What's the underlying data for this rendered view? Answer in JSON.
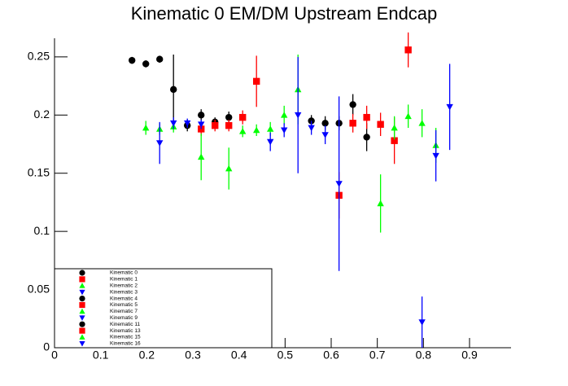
{
  "chart_data": {
    "type": "scatter",
    "title": "Kinematic 0 EM/DM Upstream Endcap",
    "xlim": [
      0,
      0.99
    ],
    "ylim": [
      0,
      0.266
    ],
    "xticks": [
      0,
      0.1,
      0.2,
      0.3,
      0.4,
      0.5,
      0.6,
      0.7,
      0.8,
      0.9
    ],
    "yticks": [
      0,
      0.05,
      0.1,
      0.15,
      0.2,
      0.25
    ],
    "series": [
      {
        "name": "Kinematic 0",
        "color": "#000000",
        "marker": "circle",
        "x": [
          0.168,
          0.198,
          0.228,
          0.258,
          0.288,
          0.318,
          0.348,
          0.378,
          0.557,
          0.587,
          0.617,
          0.647,
          0.677
        ],
        "values": [
          0.247,
          0.244,
          0.248,
          0.222,
          0.191,
          0.2,
          0.194,
          0.198,
          0.195,
          0.193,
          0.193,
          0.209,
          0.181
        ],
        "errors": [
          0.003,
          0.003,
          0.003,
          0.03,
          0.005,
          0.005,
          0.004,
          0.005,
          0.005,
          0.006,
          0.006,
          0.009,
          0.012
        ]
      },
      {
        "name": "Kinematic 1",
        "color": "#ff0000",
        "marker": "square",
        "x": [
          0.318,
          0.348,
          0.378,
          0.408,
          0.438,
          0.617,
          0.647,
          0.677,
          0.707,
          0.737,
          0.767
        ],
        "values": [
          0.188,
          0.191,
          0.191,
          0.198,
          0.229,
          0.131,
          0.193,
          0.198,
          0.192,
          0.178,
          0.256
        ],
        "errors": [
          0.006,
          0.005,
          0.005,
          0.006,
          0.022,
          0.02,
          0.008,
          0.01,
          0.01,
          0.02,
          0.015
        ]
      },
      {
        "name": "Kinematic 2",
        "color": "#00ff00",
        "marker": "triangle-up",
        "x": [
          0.198,
          0.228,
          0.258,
          0.318,
          0.378,
          0.408,
          0.438,
          0.468,
          0.498,
          0.528,
          0.707,
          0.737,
          0.767,
          0.797,
          0.827
        ],
        "values": [
          0.189,
          0.188,
          0.19,
          0.164,
          0.154,
          0.186,
          0.187,
          0.188,
          0.2,
          0.222,
          0.124,
          0.189,
          0.199,
          0.193,
          0.174
        ],
        "errors": [
          0.006,
          0.005,
          0.005,
          0.02,
          0.018,
          0.005,
          0.005,
          0.006,
          0.008,
          0.03,
          0.025,
          0.01,
          0.01,
          0.012,
          0.015
        ]
      },
      {
        "name": "Kinematic 3",
        "color": "#0000ff",
        "marker": "triangle-down",
        "x": [
          0.228,
          0.258,
          0.288,
          0.318,
          0.468,
          0.498,
          0.528,
          0.557,
          0.587,
          0.617,
          0.797,
          0.827,
          0.857
        ],
        "values": [
          0.176,
          0.193,
          0.193,
          0.192,
          0.177,
          0.187,
          0.2,
          0.189,
          0.183,
          0.141,
          0.022,
          0.165,
          0.207
        ],
        "errors": [
          0.018,
          0.005,
          0.004,
          0.004,
          0.008,
          0.006,
          0.05,
          0.006,
          0.008,
          0.075,
          0.022,
          0.022,
          0.037
        ]
      },
      {
        "name": "Kinematic 4",
        "color": "#000000",
        "marker": "circle",
        "x": [],
        "values": [],
        "errors": []
      },
      {
        "name": "Kinematic 5",
        "color": "#ff0000",
        "marker": "square",
        "x": [],
        "values": [],
        "errors": []
      },
      {
        "name": "Kinematic 7",
        "color": "#00ff00",
        "marker": "triangle-up",
        "x": [],
        "values": [],
        "errors": []
      },
      {
        "name": "Kinematic 9",
        "color": "#0000ff",
        "marker": "triangle-down",
        "x": [],
        "values": [],
        "errors": []
      },
      {
        "name": "Kinematic 11",
        "color": "#000000",
        "marker": "circle",
        "x": [],
        "values": [],
        "errors": []
      },
      {
        "name": "Kinematic 13",
        "color": "#ff0000",
        "marker": "square",
        "x": [],
        "values": [],
        "errors": []
      },
      {
        "name": "Kinematic 15",
        "color": "#00ff00",
        "marker": "triangle-up",
        "x": [],
        "values": [],
        "errors": []
      },
      {
        "name": "Kinematic 16",
        "color": "#0000ff",
        "marker": "triangle-down",
        "x": [],
        "values": [],
        "errors": []
      }
    ]
  }
}
